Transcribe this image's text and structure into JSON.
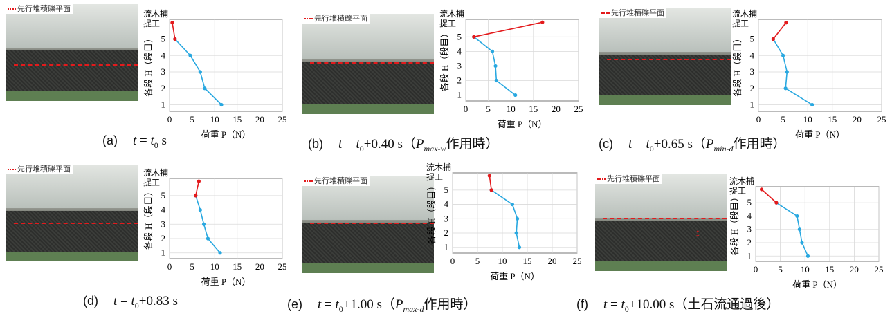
{
  "legend_label": "先行堆積礫平面",
  "structure_label": "流木捕\n捉工",
  "y_axis_label": "各段 H（段目）",
  "x_axis_label": "荷重 P（N）",
  "chart_data": [
    {
      "id": "a",
      "type": "line",
      "xlim": [
        0,
        25
      ],
      "ylim": [
        0.6,
        6.2
      ],
      "x_ticks": [
        0,
        5,
        10,
        15,
        20,
        25
      ],
      "y_ticks": [
        1,
        2,
        3,
        4,
        5
      ],
      "xlabel": "荷重 P（N）",
      "ylabel": "各段 H（段目）",
      "series": [
        {
          "color": "#29a8e0",
          "x": [
            11.5,
            7.8,
            6.8,
            4.6,
            1.2
          ],
          "y": [
            1,
            2,
            3,
            4,
            5
          ]
        },
        {
          "color": "#e31a1c",
          "x": [
            1.2,
            0.6
          ],
          "y": [
            5,
            6
          ]
        }
      ]
    },
    {
      "id": "b",
      "type": "line",
      "xlim": [
        0,
        25
      ],
      "ylim": [
        0.6,
        6.2
      ],
      "x_ticks": [
        0,
        5,
        10,
        15,
        20,
        25
      ],
      "y_ticks": [
        1,
        2,
        3,
        4,
        5
      ],
      "xlabel": "荷重 P（N）",
      "ylabel": "各段 H（段目）",
      "series": [
        {
          "color": "#29a8e0",
          "x": [
            11.0,
            6.8,
            6.6,
            5.9,
            1.8
          ],
          "y": [
            1,
            2,
            3,
            4,
            5
          ]
        },
        {
          "color": "#e31a1c",
          "x": [
            1.8,
            17.0
          ],
          "y": [
            5,
            6
          ]
        }
      ]
    },
    {
      "id": "c",
      "type": "line",
      "xlim": [
        0,
        25
      ],
      "ylim": [
        0.6,
        6.2
      ],
      "x_ticks": [
        0,
        5,
        10,
        15,
        20,
        25
      ],
      "y_ticks": [
        1,
        2,
        3,
        4,
        5
      ],
      "xlabel": "荷重 P（N）",
      "ylabel": "各段 H（段目）",
      "series": [
        {
          "color": "#29a8e0",
          "x": [
            10.9,
            5.5,
            5.8,
            5.0,
            3.0
          ],
          "y": [
            1,
            2,
            3,
            4,
            5
          ]
        },
        {
          "color": "#e31a1c",
          "x": [
            3.0,
            5.6
          ],
          "y": [
            5,
            6
          ]
        }
      ]
    },
    {
      "id": "d",
      "type": "line",
      "xlim": [
        0,
        25
      ],
      "ylim": [
        0.6,
        6.2
      ],
      "x_ticks": [
        0,
        5,
        10,
        15,
        20,
        25
      ],
      "y_ticks": [
        1,
        2,
        3,
        4,
        5
      ],
      "xlabel": "荷重 P（N）",
      "ylabel": "各段 H（段目）",
      "series": [
        {
          "color": "#29a8e0",
          "x": [
            11.2,
            8.5,
            7.6,
            6.8,
            5.8
          ],
          "y": [
            1,
            2,
            3,
            4,
            5
          ]
        },
        {
          "color": "#e31a1c",
          "x": [
            5.8,
            6.5
          ],
          "y": [
            5,
            6
          ]
        }
      ]
    },
    {
      "id": "e",
      "type": "line",
      "xlim": [
        0,
        25
      ],
      "ylim": [
        0.6,
        6.2
      ],
      "x_ticks": [
        0,
        5,
        10,
        15,
        20,
        25
      ],
      "y_ticks": [
        1,
        2,
        3,
        4,
        5
      ],
      "xlabel": "荷重 P（N）",
      "ylabel": "各段 H（段目）",
      "series": [
        {
          "color": "#29a8e0",
          "x": [
            13.4,
            12.8,
            13.0,
            12.0,
            7.8
          ],
          "y": [
            1,
            2,
            3,
            4,
            5
          ]
        },
        {
          "color": "#e31a1c",
          "x": [
            7.8,
            7.4
          ],
          "y": [
            5,
            6
          ]
        }
      ]
    },
    {
      "id": "f",
      "type": "line",
      "xlim": [
        0,
        25
      ],
      "ylim": [
        0.6,
        6.2
      ],
      "x_ticks": [
        0,
        5,
        10,
        15,
        20,
        25
      ],
      "y_ticks": [
        1,
        2,
        3,
        4,
        5
      ],
      "xlabel": "荷重 P（N）",
      "ylabel": "各段 H（段目）",
      "series": [
        {
          "color": "#29a8e0",
          "x": [
            10.6,
            9.4,
            8.9,
            8.4,
            4.2
          ],
          "y": [
            1,
            2,
            3,
            4,
            5
          ]
        },
        {
          "color": "#e31a1c",
          "x": [
            4.2,
            1.2
          ],
          "y": [
            5,
            6
          ]
        }
      ]
    }
  ],
  "captions": [
    {
      "label": "(a)",
      "t": "t",
      "eq": " = ",
      "t0": "t",
      "t0sub": "0",
      "rest": " s",
      "p": "",
      "psub": "",
      "tail": ""
    },
    {
      "label": "(b)",
      "t": "t",
      "eq": " = ",
      "t0": "t",
      "t0sub": "0",
      "rest": "+0.40 s（",
      "p": "P",
      "psub": "max-w",
      "tail": "作用時）"
    },
    {
      "label": "(c)",
      "t": "t",
      "eq": " = ",
      "t0": "t",
      "t0sub": "0",
      "rest": "+0.65 s（",
      "p": "P",
      "psub": "min-d",
      "tail": "作用時）"
    },
    {
      "label": "(d)",
      "t": "t",
      "eq": " = ",
      "t0": "t",
      "t0sub": "0",
      "rest": "+0.83 s",
      "p": "",
      "psub": "",
      "tail": ""
    },
    {
      "label": "(e)",
      "t": "t",
      "eq": " = ",
      "t0": "t",
      "t0sub": "0",
      "rest": "+1.00 s（",
      "p": "P",
      "psub": "max-d",
      "tail": "作用時）"
    },
    {
      "label": "(f)",
      "t": "t",
      "eq": " = ",
      "t0": "t",
      "t0sub": "0",
      "rest": "+10.00 s（土石流通過後）",
      "p": "",
      "psub": "",
      "tail": ""
    }
  ],
  "colors": {
    "before": "#29a8e0",
    "after": "#e31a1c",
    "grid": "#d9d9d9",
    "axis": "#555555"
  }
}
